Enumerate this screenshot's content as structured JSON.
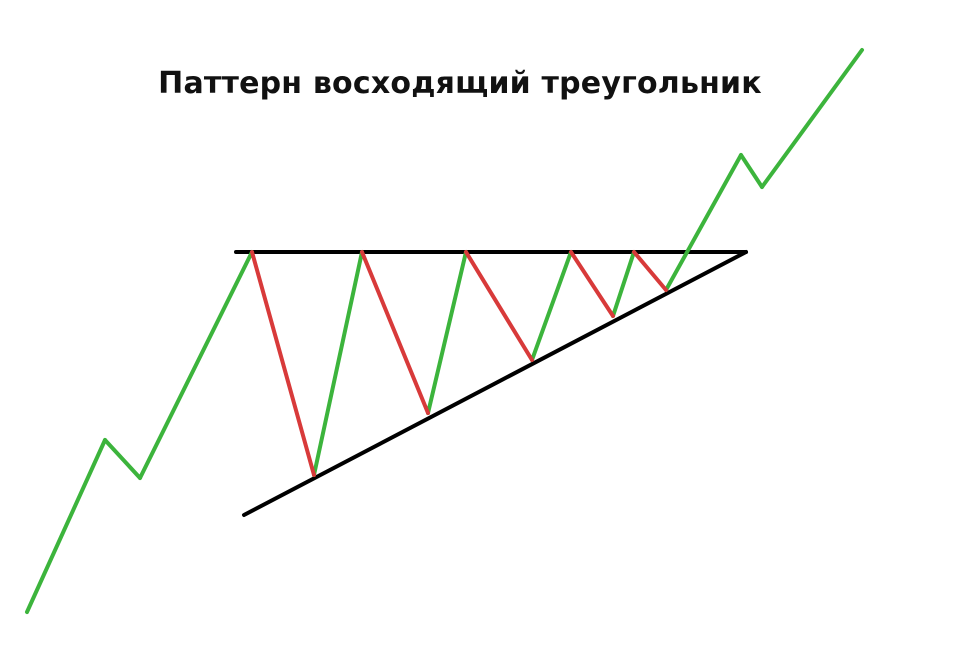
{
  "diagram": {
    "title": "Паттерн восходящий треугольник",
    "colors": {
      "rising": "#3cb43c",
      "falling": "#d83a3a",
      "trendline": "#000000",
      "background": "#ffffff"
    }
  }
}
